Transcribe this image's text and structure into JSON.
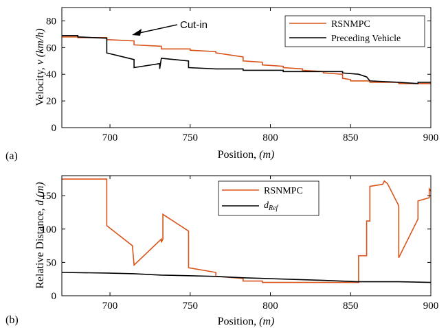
{
  "colors": {
    "rsnmpc": "#d95319",
    "reference": "#000000"
  },
  "chart_data": [
    {
      "type": "line",
      "panel_label": "(a)",
      "xlabel_text": "Position, ",
      "xlabel_unit": "(m)",
      "ylabel_text": "Velocity, ",
      "ylabel_unit": "v (km/h)",
      "xlim": [
        670,
        900
      ],
      "ylim": [
        0,
        90
      ],
      "xticks": [
        700,
        750,
        800,
        850,
        900
      ],
      "yticks": [
        0,
        20,
        40,
        60,
        80
      ],
      "legend_position": "top-right",
      "annotation": {
        "text": "Cut-in",
        "x": 710,
        "y": 69
      },
      "series": [
        {
          "name": "RSNMPC",
          "color": "#d95319",
          "x": [
            670,
            680,
            680,
            698,
            698,
            715,
            715,
            732,
            732,
            750,
            750,
            766,
            766,
            783,
            783,
            795,
            795,
            808,
            808,
            820,
            820,
            833,
            833,
            845,
            845,
            850,
            850,
            862,
            862,
            880,
            880,
            900
          ],
          "y": [
            68,
            68,
            67.5,
            67.5,
            66,
            65,
            62,
            61,
            59,
            59,
            58,
            57,
            56,
            53,
            50,
            49,
            47,
            46,
            45,
            44,
            43,
            42,
            41,
            40,
            37,
            36,
            35,
            35,
            34,
            34,
            33,
            33
          ]
        },
        {
          "name": "Preceding Vehicle",
          "color": "#000000",
          "x": [
            670,
            680,
            680,
            698,
            698,
            715,
            715,
            731,
            731,
            732,
            732,
            749,
            749,
            766,
            766,
            783,
            783,
            808,
            808,
            833,
            833,
            845,
            845,
            855,
            855,
            860,
            860,
            862,
            862,
            880,
            880,
            892,
            892,
            900
          ],
          "y": [
            69,
            69,
            68,
            67,
            56,
            51,
            45,
            48,
            44,
            52,
            52,
            50,
            45,
            44,
            44,
            44,
            43,
            43,
            42,
            42,
            42,
            42,
            41,
            40,
            40,
            38,
            38,
            35,
            35,
            34,
            34,
            33,
            34,
            34
          ]
        }
      ]
    },
    {
      "type": "line",
      "panel_label": "(b)",
      "xlabel_text": "Position, ",
      "xlabel_unit": "(m)",
      "ylabel_text": "Relative Distance, ",
      "ylabel_unit": "d (m)",
      "xlim": [
        670,
        900
      ],
      "ylim": [
        0,
        180
      ],
      "xticks": [
        700,
        750,
        800,
        850,
        900
      ],
      "yticks": [
        0,
        50,
        100,
        150
      ],
      "legend_position": "top-center",
      "series": [
        {
          "name": "RSNMPC",
          "color": "#d95319",
          "x": [
            670,
            698,
            698,
            714,
            715,
            732,
            732,
            733,
            733,
            749,
            749,
            766,
            766,
            783,
            783,
            795,
            795,
            833,
            833,
            855,
            855,
            860,
            860,
            862,
            862,
            870,
            871,
            873,
            873,
            880,
            880,
            880,
            880,
            892,
            892,
            899,
            899,
            900
          ],
          "y": [
            175,
            175,
            105,
            75,
            46,
            85,
            80,
            85,
            122,
            97,
            42,
            35,
            29,
            26,
            22,
            22,
            20,
            20,
            20,
            20,
            60,
            60,
            112,
            112,
            164,
            167,
            172,
            168,
            168,
            135,
            135,
            60,
            57,
            115,
            142,
            147,
            160,
            157
          ]
        },
        {
          "name": "d_Ref",
          "label_base": "d",
          "label_sub": "Ref",
          "color": "#000000",
          "x": [
            670,
            698,
            715,
            732,
            749,
            766,
            783,
            808,
            833,
            855,
            862,
            880,
            900
          ],
          "y": [
            35,
            34,
            33,
            31,
            30,
            29,
            27,
            25,
            23,
            21,
            21,
            21,
            20
          ]
        }
      ]
    }
  ]
}
